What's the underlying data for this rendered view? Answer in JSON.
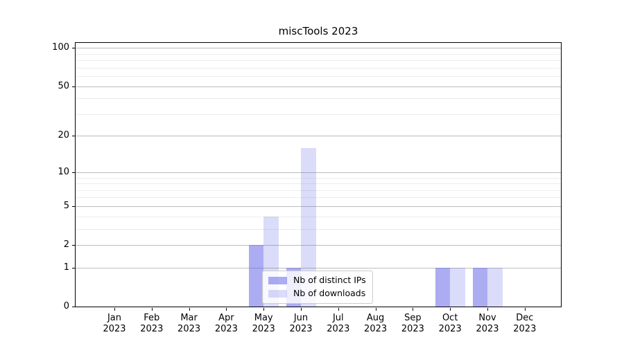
{
  "chart_data": {
    "type": "bar",
    "title": "miscTools 2023",
    "categories": [
      "Jan",
      "Feb",
      "Mar",
      "Apr",
      "May",
      "Jun",
      "Jul",
      "Aug",
      "Sep",
      "Oct",
      "Nov",
      "Dec"
    ],
    "category_year": "2023",
    "series": [
      {
        "name": "Nb of distinct IPs",
        "color": "rgba(90,90,232,0.5)",
        "values": [
          0,
          0,
          0,
          0,
          2,
          1,
          0,
          0,
          0,
          1,
          1,
          0
        ]
      },
      {
        "name": "Nb of downloads",
        "color": "rgba(90,90,232,0.22)",
        "values": [
          0,
          0,
          0,
          0,
          4,
          16,
          0,
          0,
          0,
          1,
          1,
          0
        ]
      }
    ],
    "y_axis": {
      "scale": "log1p",
      "major_ticks": [
        0,
        1,
        2,
        5,
        10,
        20,
        50,
        100
      ],
      "minor_gridlines": [
        3,
        4,
        6,
        7,
        8,
        9,
        30,
        40,
        60,
        70,
        80,
        90
      ],
      "ylim": [
        0,
        112
      ]
    },
    "grid": {
      "major_color": "#bcbcbc",
      "minor_color": "#ececec",
      "horizontal_only": true
    },
    "legend": {
      "position": "inside lower-center",
      "entries": [
        "Nb of distinct IPs",
        "Nb of downloads"
      ]
    }
  }
}
